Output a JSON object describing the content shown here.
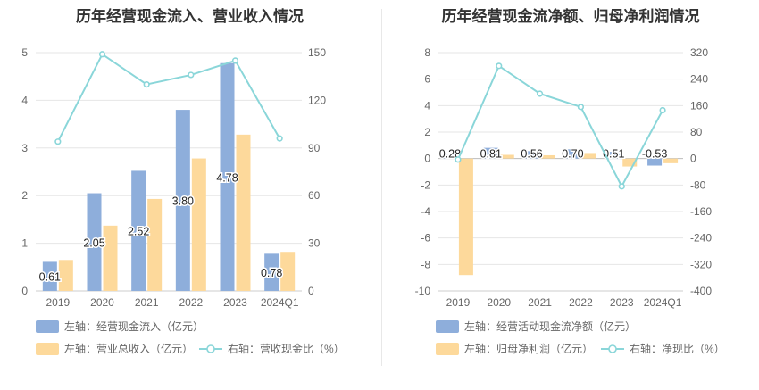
{
  "charts": [
    {
      "title": "历年经营现金流入、营业收入情况",
      "chart_data": {
        "type": "bar",
        "title": "历年经营现金流入、营业收入情况",
        "categories": [
          "2019",
          "2020",
          "2021",
          "2022",
          "2023",
          "2024Q1"
        ],
        "left_axis": {
          "min": 0,
          "max": 5,
          "ticks": [
            0,
            1,
            2,
            3,
            4,
            5
          ]
        },
        "right_axis": {
          "min": 0,
          "max": 150,
          "ticks": [
            0,
            30,
            60,
            90,
            120,
            150
          ]
        },
        "series": [
          {
            "name": "左轴：经营现金流入（亿元）",
            "type": "bar",
            "axis": "left",
            "color": "#8eaedb",
            "values": [
              0.61,
              2.05,
              2.52,
              3.8,
              4.78,
              0.78
            ],
            "labels": [
              "0.61",
              "2.05",
              "2.52",
              "3.80",
              "4.78",
              "0.78"
            ]
          },
          {
            "name": "左轴：营业总收入（亿元）",
            "type": "bar",
            "axis": "left",
            "color": "#fdd99b",
            "values": [
              0.65,
              1.37,
              1.93,
              2.78,
              3.28,
              0.82
            ]
          },
          {
            "name": "右轴：营收现金比（%）",
            "type": "line",
            "axis": "right",
            "color": "#8ad6d9",
            "values": [
              94,
              149,
              130,
              136,
              145,
              96
            ]
          }
        ],
        "legend_position": "bottom",
        "grid": true
      }
    },
    {
      "title": "历年经营现金流净额、归母净利润情况",
      "chart_data": {
        "type": "bar",
        "title": "历年经营现金流净额、归母净利润情况",
        "categories": [
          "2019",
          "2020",
          "2021",
          "2022",
          "2023",
          "2024Q1"
        ],
        "left_axis": {
          "min": -10,
          "max": 8,
          "ticks": [
            -10,
            -8,
            -6,
            -4,
            -2,
            0,
            2,
            4,
            6,
            8
          ]
        },
        "right_axis": {
          "min": -400,
          "max": 320,
          "ticks": [
            -400,
            -320,
            -240,
            -160,
            -80,
            0,
            80,
            160,
            240,
            320
          ]
        },
        "series": [
          {
            "name": "左轴：经营活动现金流净额（亿元）",
            "type": "bar",
            "axis": "left",
            "color": "#8eaedb",
            "values": [
              0.28,
              0.81,
              0.56,
              0.7,
              0.51,
              -0.53
            ],
            "labels": [
              "0.28",
              "0.81",
              "0.56",
              "0.70",
              "0.51",
              "-0.53"
            ]
          },
          {
            "name": "左轴：归母净利润（亿元）",
            "type": "bar",
            "axis": "left",
            "color": "#fdd99b",
            "values": [
              -8.8,
              0.28,
              0.25,
              0.42,
              -0.6,
              -0.35
            ]
          },
          {
            "name": "右轴：净现比（%）",
            "type": "line",
            "axis": "right",
            "color": "#8ad6d9",
            "values": [
              -3,
              280,
              196,
              156,
              -84,
              146
            ]
          }
        ],
        "legend_position": "bottom",
        "grid": true
      }
    }
  ]
}
